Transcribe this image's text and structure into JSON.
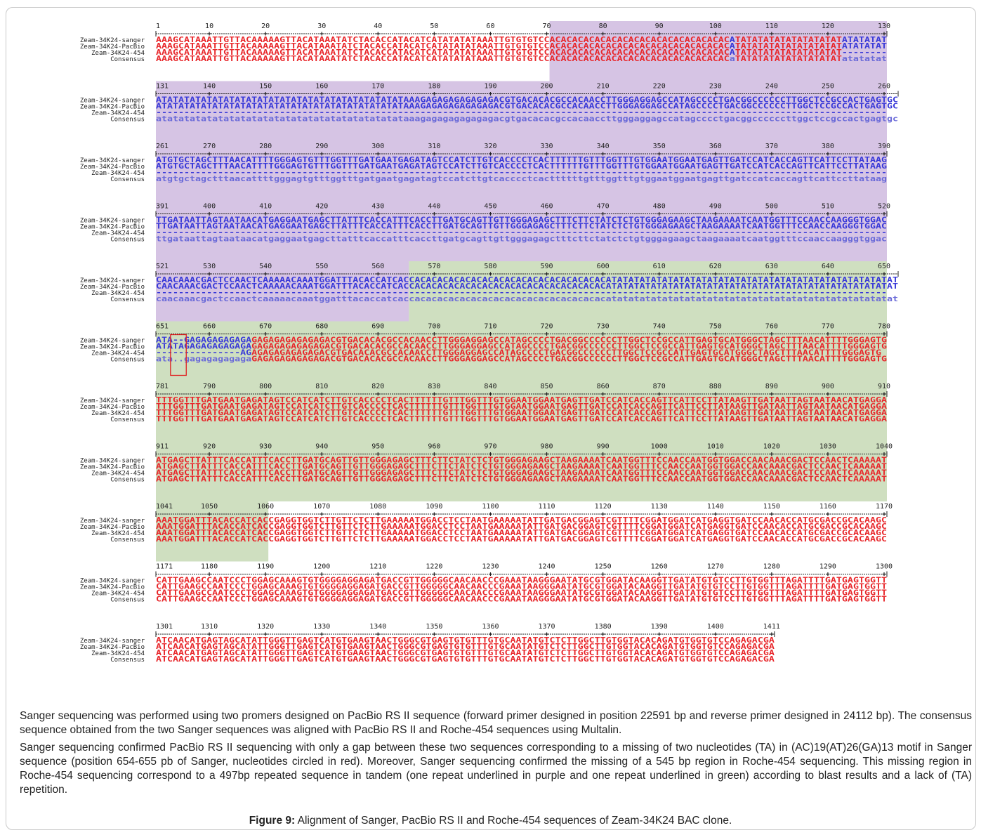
{
  "figure": {
    "label": "Figure 9:",
    "text": "Alignment of Sanger, PacBio RS II and Roche-454 sequences of Zeam-34K24 BAC clone."
  },
  "paragraphs": [
    "Sanger sequencing was performed using two promers designed on PacBio RS II sequence (forward primer designed in position 22591 bp and reverse primer designed in 24112 bp). The consensus sequence obtained from the two Sanger sequences was aligned with PacBio RS II and Roche-454 sequences using Multalin.",
    "Sanger sequencing confirmed PacBio RS II sequencing with only a gap between these two sequences corresponding to a missing of two nucleotides (TA) in (AC)19(AT)26(GA)13 motif in Sanger sequence (position 654-655 pb of Sanger, nucleotides circled in red). Moreover, Sanger sequencing confirmed the missing of a 545 bp region in Roche-454 sequencing. This missing region in Roche-454 sequencing correspond to a 497bp repeated sequence in tandem (one repeat underlined in purple and one repeat underlined in green) according to blast results and a lack of (TA) repetition."
  ],
  "alignment": {
    "row_labels": [
      "Zeam-34K24-sanger",
      "Zeam-34K24-PacBio",
      "Zeam-34K24-454",
      "Consensus"
    ],
    "colors": {
      "match": "#e8262a",
      "mismatch": "#3838d8",
      "consensus_low": "#6a6ad8",
      "purple_region": "#d6c4e4",
      "green_region": "#cfdfc0",
      "circle": "#e02020",
      "ruler": "#222222"
    },
    "blocks": [
      {
        "ticks": [
          "1",
          "10",
          "20",
          "30",
          "40",
          "50",
          "60",
          "70",
          "80",
          "90",
          "100",
          "110",
          "120",
          "130"
        ],
        "rows": [
          "AAAGCATAAATTGTTACAAAAAGTTACATAAATATCTACACCATACATCATATATATAAATTGTGTGTCCACACACACACACACACACACACACACACACACATATATATATATATATATATATATATAT",
          "AAAGCATAAATTGTTACAAAAAGTTACATAAATATCTACACCATACATCATATATATAAATTGTGTGTCCACACACACACACACACACACACACACACACACATATATATATATATATATATATATATAT",
          "AAAGCATAAATTGTTACAAAAAGTTACATAAATATCTACACCATACATCATATATATAAATTGTGTGTCCACACACACACACACACACACACACACACACACATATATATATATATATATAT--------",
          "AAAGCATAAATTGTTACAAAAAGTTACATAAATATCTACACCATACATCATATATATAAATTGTGTGTCCACACACACACACACACACACACACACACACACaTATATATATATATATATATatatatat"
        ]
      },
      {
        "ticks": [
          "131",
          "140",
          "150",
          "160",
          "170",
          "180",
          "190",
          "200",
          "210",
          "220",
          "230",
          "240",
          "250",
          "260"
        ],
        "rows": [
          "ATATATATATATATATATATATATATATATATATATATATATATAAAGAGAGAGAGAGAGACGTGACACACGCCACAACCTTGGGAGGAGCCATAGCCCCTGACGGCCCCCCTTGGCTCCGCCACTGAGTGC",
          "ATATATATATATATATATATATATATATATATATATATATATATAAAGAGAGAGAGAGAGACGTGACACACGCCACAACCTTGGGAGGAGCCATAGCCCCTGACGGCCCCCCTTGGCTCCGCCACTGAGTGC",
          "----------------------------------------------------------------------------------------------------------------------------------",
          "atatatatatatatatatatatatatatatatatatatatatataaagagagagagagagacgtgacacacgccacaaccttgggaggagccatagcccctgacggccccccttggctccgccactgagtgc"
        ]
      },
      {
        "ticks": [
          "261",
          "270",
          "280",
          "290",
          "300",
          "310",
          "320",
          "330",
          "340",
          "350",
          "360",
          "370",
          "380",
          "390"
        ],
        "rows": [
          "ATGTGCTAGCTTTAACATTTTGGGAGTGTTTGGTTTGATGAATGAGATAGTCCATCTTGTCACCCCTCACTTTTTTGTTTGGTTTGTGGAATGGAATGAGTTGATCCATCACCAGTTCATTCCTTATAAG",
          "ATGTGCTAGCTTTAACATTTTGGGAGTGTTTGGTTTGATGAATGAGATAGTCCATCTTGTCACCCCTCACTTTTTTGTTTGGTTTGTGGAATGGAATGAGTTGATCCATCACCAGTTCATTCCTTATAAG",
          "----------------------------------------------------------------------------------------------------------------------------------",
          "atgtgctagctttaacattttgggagtgtttggtttgatgaatgagatagtccatcttgtcacccctcacttttttgtttggtttgtggaatggaatgagttgatccatcaccagttcattccttataag"
        ]
      },
      {
        "ticks": [
          "391",
          "400",
          "410",
          "420",
          "430",
          "440",
          "450",
          "460",
          "470",
          "480",
          "490",
          "500",
          "510",
          "520"
        ],
        "rows": [
          "TTGATAATTAGTAATAACATGAGGAATGAGCTTATTTCACCATTTCACCTTGATGCAGTTGTTGGGAGAGCTTTCTTCTATCTCTGTGGGAGAAGCTAAGAAAATCAATGGTTTCCAACCAAGGGTGGAC",
          "TTGATAATTAGTAATAACATGAGGAATGAGCTTATTTCACCATTTCACCTTGATGCAGTTGTTGGGAGAGCTTTCTTCTATCTCTGTGGGAGAAGCTAAGAAAATCAATGGTTTCCAACCAAGGGTGGAC",
          "----------------------------------------------------------------------------------------------------------------------------------",
          "ttgataattagtaataacatgaggaatgagcttatttcaccatttcaccttgatgcagttgttgggagagctttcttctatctctgtgggagaagctaagaaaatcaatggtttccaaccaagggtggac"
        ]
      },
      {
        "ticks": [
          "521",
          "530",
          "540",
          "550",
          "560",
          "570",
          "580",
          "590",
          "600",
          "610",
          "620",
          "630",
          "640",
          "650"
        ],
        "rows": [
          "CAACAAACGACTCCAACTCAAAAACAAATGGATTTACACCATCACCACACACACACACACACACACACACACACACACACATATATATATATATATATATATATATATATATATATATATATATATATATAT",
          "CAACAAACGACTCCAACTCAAAAACAAATGGATTTACACCATCACCACACACACACACACACACACACACACACACACACATATATATATATATATATATATATATATATATATATATATATATATATATAT",
          "----------------------------------------------------------------------------------------------------------------------------------",
          "caacaaacgactccaactcaaaaacaaatggatttacaccatcaccacacacacacacacacacacacacacacacacacatatatatatatatatatatatatatatatatatatatatatatatatatat"
        ]
      },
      {
        "ticks": [
          "651",
          "660",
          "670",
          "680",
          "690",
          "700",
          "710",
          "720",
          "730",
          "740",
          "750",
          "760",
          "770",
          "780"
        ],
        "rows": [
          "ATA--GAGAGAGAGAGAGAGAGAGAGAGAGACGTGACACACGCCACAACCTTGGGAGGAGCCATAGCCCCTGACGGCCCCCCTTGGCTCCGCCATTGAGTGCATGGGCTAGCTTTAACATTTTGGGAGTG",
          "ATATAGAGAGAGAGAGAGAGAGAGAGAGAGACGTGACACACGCCACAACCTTGGGAGGAGCCATAGCCCCTGACGGCCCCCCTTGGCTCCGCCATTGAGTGCATGGGCTAGCTTTAACATTTTGGGAGTG",
          "---------------AGAGAGAGAGAGAGACGTGACACACGCCACAACCTTGGGAGGAGCCATAGCCCCTGACGGCCCCCCTTGGCTCCGCCATTGAGTGCATGGGCTAGCTTTAACATTTTGGGAGTG",
          "ata..gagagagagagaGAGAGAGAGAGAGACGTGACACACGCCACAACCTTGGGAGGAGCCATAGCCCCTGACGGCCCCCCTTGGCTCCGCCATTGAGTGCATGGGCTAGCTTTAACATTTTGGGAGTG"
        ]
      },
      {
        "ticks": [
          "781",
          "790",
          "800",
          "810",
          "820",
          "830",
          "840",
          "850",
          "860",
          "870",
          "880",
          "890",
          "900",
          "910"
        ],
        "rows": [
          "TTTGGTTTGATGAATGAGATAGTCCATCATCTTGTCACCCCTCACTTTTTTGTTTGGTTTGTGGAATGGAATGAGTTGATCCATCACCAGTTCATTCCTTATAAGTTGATAATTAGTAATAACATGAGGA",
          "TTTGGTTTGATGAATGAGATAGTCCATCATCTTGTCACCCCTCACTTTTTTGTTTGGTTTGTGGAATGGAATGAGTTGATCCATCACCAGTTCATTCCTTATAAGTTGATAATTAGTAATAACATGAGGA",
          "TTTGGTTTGATGAATGAGATAGTCCATCATCTTGTCACCCCTCACTTTTTTGTTTGGTTTGTGGAATGGAATGAGTTGATCCATCACCAGTTCATTCCTTATAAGTTGATAATTAGTAATAACATGAGGA",
          "TTTGGTTTGATGAATGAGATAGTCCATCATCTTGTCACCCCTCACTTTTTTGTTTGGTTTGTGGAATGGAATGAGTTGATCCATCACCAGTTCATTCCTTATAAGTTGATAATTAGTAATAACATGAGGA"
        ]
      },
      {
        "ticks": [
          "911",
          "920",
          "930",
          "940",
          "950",
          "960",
          "970",
          "980",
          "990",
          "1000",
          "1010",
          "1020",
          "1030",
          "1040"
        ],
        "rows": [
          "ATGAGCTTATTTCACCATTTCACCTTGATGCAGTTGTTGGGAGAGCTTTCTTCTATCTCTGTGGGAGAAGCTAAGAAAATCAATGGTTTCCAACCAATGGTGGACCAACAAACGACTCCAACTCAAAAAT",
          "ATGAGCTTATTTCACCATTTCACCTTGATGCAGTTGTTGGGAGAGCTTTCTTCTATCTCTGTGGGAGAAGCTAAGAAAATCAATGGTTTCCAACCAATGGTGGACCAACAAACGACTCCAACTCAAAAAT",
          "ATGAGCTTATTTCACCATTTCACCTTGATGCAGTTGTTGGGAGAGCTTTCTTCTATCTCTGTGGGAGAAGCTAAGAAAATCAATGGTTTCCAACCAATGGTGGACCAACAAACGACTCCAACTCAAAAAT",
          "ATGAGCTTATTTCACCATTTCACCTTGATGCAGTTGTTGGGAGAGCTTTCTTCTATCTCTGTGGGAGAAGCTAAGAAAATCAATGGTTTCCAACCAATGGTGGACCAACAAACGACTCCAACTCAAAAAT"
        ]
      },
      {
        "ticks": [
          "1041",
          "1050",
          "1060",
          "1070",
          "1080",
          "1090",
          "1100",
          "1110",
          "1120",
          "1130",
          "1140",
          "1150",
          "1160",
          "1170"
        ],
        "rows": [
          "AAATGGATTTACACCATCACCGAGGTGGTCTTGTTCTCTTGAAAAATGGACCTCCTAATGAAAAATATTGATGACGGAGTCGTTTTCGGATGGATCATGAGGTGATCCAACACCATGCGACCGCACAAGC",
          "AAATGGATTTACACCATCACCGAGGTGGTCTTGTTCTCTTGAAAAATGGACCTCCTAATGAAAAATATTGATGACGGAGTCGTTTTCGGATGGATCATGAGGTGATCCAACACCATGCGACCGCACAAGC",
          "AAATGGATTTACACCATCACCGAGGTGGTCTTGTTCTCTTGAAAAATGGACCTCCTAATGAAAAATATTGATGACGGAGTCGTTTTCGGATGGATCATGAGGTGATCCAACACCATGCGACCGCACAAGC",
          "AAATGGATTTACACCATCACCGAGGTGGTCTTGTTCTCTTGAAAAATGGACCTCCTAATGAAAAATATTGATGACGGAGTCGTTTTCGGATGGATCATGAGGTGATCCAACACCATGCGACCGCACAAGC"
        ]
      },
      {
        "ticks": [
          "1171",
          "1180",
          "1190",
          "1200",
          "1210",
          "1220",
          "1230",
          "1240",
          "1250",
          "1260",
          "1270",
          "1280",
          "1290",
          "1300"
        ],
        "rows": [
          "CATTGAAGCCAATCCCTGGAGCAAAGTGTGGGGAGGAGATGACCGTTGGGGGCAACAACCCGAAATAAGGGAATATGCGTGGATACAAGGTTGATATGTGTCCTTGTGGTTTAGATTTTGATGAGTGGTT",
          "CATTGAAGCCAATCCCTGGAGCAAAGTGTGGGGAGGAGATGACCGTTGGGGGCAACAACCCGAAATAAGGGAATATGCGTGGATACAAGGTTGATATGTGTCCTTGTGGTTTAGATTTTGATGAGTGGTT",
          "CATTGAAGCCAATCCCTGGAGCAAAGTGTGGGGAGGAGATGACCGTTGGGGGCAACAACCCGAAATAAGGGAATATGCGTGGATACAAGGTTGATATGTGTCCTTGTGGTTTAGATTTTGATGAGTGGTT",
          "CATTGAAGCCAATCCCTGGAGCAAAGTGTGGGGAGGAGATGACCGTTGGGGGCAACAACCCGAAATAAGGGAATATGCGTGGATACAAGGTTGATATGTGTCCTTGTGGTTTAGATTTTGATGAGTGGTT"
        ]
      },
      {
        "ticks": [
          "1301",
          "1310",
          "1320",
          "1330",
          "1340",
          "1350",
          "1360",
          "1370",
          "1380",
          "1390",
          "1400",
          "1411"
        ],
        "rows": [
          "ATCAACATGAGTAGCATATTGGGTTGAGTCATGTGAAGTAACTGGGCGTGAGTGTGTTTGTGCAATATGTCTCTTGGCTTGTGGTACACAGATGTGGTGTCCAGAGACGA",
          "ATCAACATGAGTAGCATATTGGGTTGAGTCATGTGAAGTAACTGGGCGTGAGTGTGTTTGTGCAATATGTCTCTTGGCTTGTGGTACACAGATGTGGTGTCCAGAGACGA",
          "ATCAACATGAGTAGCATATTGGGTTGAGTCATGTGAAGTAACTGGGCGTGAGTGTGTTTGTGCAATATGTCTCTTGGCTTGTGGTACACAGATGTGGTGTCCAGAGACGA",
          "ATCAACATGAGTAGCATATTGGGTTGAGTCATGTGAAGTAACTGGGCGTGAGTGTGTTTGTGCAATATGTCTCTTGGCTTGTGGTACACAGATGTGGTGTCCAGAGACGA"
        ]
      }
    ]
  }
}
